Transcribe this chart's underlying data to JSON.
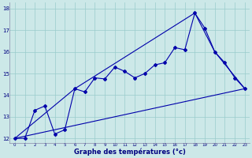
{
  "xlabel": "Graphe des températures (°c)",
  "bg_color": "#cce8e8",
  "grid_color": "#99cccc",
  "line_color": "#0000aa",
  "xlim": [
    -0.5,
    23.5
  ],
  "ylim": [
    11.8,
    18.3
  ],
  "xticks": [
    0,
    1,
    2,
    3,
    4,
    5,
    6,
    7,
    8,
    9,
    10,
    11,
    12,
    13,
    14,
    15,
    16,
    17,
    18,
    19,
    20,
    21,
    22,
    23
  ],
  "yticks": [
    12,
    13,
    14,
    15,
    16,
    17,
    18
  ],
  "line1_x": [
    0,
    1,
    2,
    3,
    4,
    5,
    6,
    7,
    8,
    9,
    10,
    11,
    12,
    13,
    14,
    15,
    16,
    17,
    18,
    19,
    20,
    21,
    22,
    23
  ],
  "line1_y": [
    12,
    12,
    13.3,
    13.5,
    12.2,
    12.4,
    14.3,
    14.15,
    14.8,
    14.75,
    15.3,
    15.1,
    14.8,
    15.0,
    15.4,
    15.5,
    16.2,
    16.1,
    17.8,
    17.1,
    16.0,
    15.5,
    14.8,
    14.3
  ],
  "line2_x": [
    0,
    6,
    18,
    20,
    23
  ],
  "line2_y": [
    12,
    14.3,
    17.8,
    16.0,
    14.3
  ],
  "line3_x": [
    0,
    23
  ],
  "line3_y": [
    12,
    14.3
  ]
}
